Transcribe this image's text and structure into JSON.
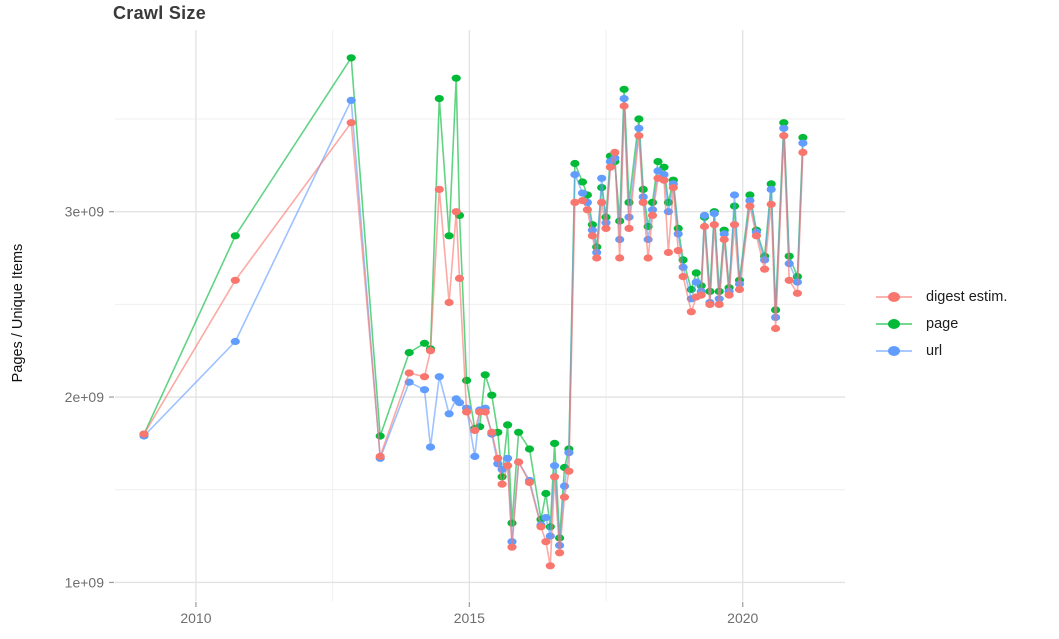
{
  "chart": {
    "title": "Crawl Size",
    "y_axis_title": "Pages / Unique Items",
    "legend": {
      "items": [
        {
          "label": "digest estim.",
          "color": "#F8766D"
        },
        {
          "label": "page",
          "color": "#00BA38"
        },
        {
          "label": "url",
          "color": "#619CFF"
        }
      ]
    }
  },
  "chart_data": {
    "type": "line",
    "title": "Crawl Size",
    "xlabel": "",
    "ylabel": "Pages / Unique Items",
    "unit": "items, value x 1e9",
    "grid": true,
    "legend_position": "right",
    "xlim": [
      2008.52,
      2021.87
    ],
    "ylim": [
      0.9,
      3.98
    ],
    "x_major_ticks": [
      {
        "label": "2010",
        "value": 2010
      },
      {
        "label": "2015",
        "value": 2015
      },
      {
        "label": "2020",
        "value": 2020
      }
    ],
    "x_minor_gridlines": [
      2012.5,
      2017.5
    ],
    "y_major_ticks": [
      {
        "label": "1e+09",
        "value": 1
      },
      {
        "label": "2e+09",
        "value": 2
      },
      {
        "label": "3e+09",
        "value": 3
      }
    ],
    "y_minor_gridlines": [
      1.5,
      2.5,
      3.5
    ],
    "x": [
      2009.05,
      2010.72,
      2012.84,
      2013.37,
      2013.9,
      2014.18,
      2014.29,
      2014.45,
      2014.63,
      2014.76,
      2014.82,
      2014.95,
      2015.1,
      2015.19,
      2015.29,
      2015.41,
      2015.52,
      2015.6,
      2015.7,
      2015.78,
      2015.9,
      2016.1,
      2016.31,
      2016.4,
      2016.48,
      2016.56,
      2016.65,
      2016.74,
      2016.82,
      2016.93,
      2017.07,
      2017.16,
      2017.25,
      2017.33,
      2017.42,
      2017.5,
      2017.58,
      2017.66,
      2017.75,
      2017.83,
      2017.92,
      2018.1,
      2018.18,
      2018.27,
      2018.35,
      2018.45,
      2018.56,
      2018.64,
      2018.73,
      2018.82,
      2018.91,
      2019.06,
      2019.15,
      2019.24,
      2019.3,
      2019.4,
      2019.48,
      2019.57,
      2019.66,
      2019.75,
      2019.85,
      2019.94,
      2020.13,
      2020.25,
      2020.4,
      2020.52,
      2020.6,
      2020.75,
      2020.85,
      2021.0,
      2021.1
    ],
    "series": [
      {
        "name": "digest estim.",
        "color": "#F8766D",
        "values": [
          1.8,
          2.63,
          3.48,
          1.68,
          2.13,
          2.11,
          2.25,
          3.12,
          2.51,
          3.0,
          2.64,
          1.92,
          1.82,
          1.92,
          1.92,
          1.81,
          1.67,
          1.53,
          1.63,
          1.19,
          1.65,
          1.54,
          1.3,
          1.22,
          1.09,
          1.57,
          1.16,
          1.46,
          1.6,
          3.05,
          3.06,
          3.01,
          2.87,
          2.75,
          3.05,
          2.91,
          3.24,
          3.32,
          2.75,
          3.57,
          2.91,
          3.41,
          3.05,
          2.75,
          2.98,
          3.18,
          3.17,
          2.78,
          3.13,
          2.79,
          2.65,
          2.46,
          2.54,
          2.55,
          2.92,
          2.5,
          2.93,
          2.5,
          2.85,
          2.55,
          2.93,
          2.58,
          3.03,
          2.87,
          2.69,
          3.04,
          2.37,
          3.41,
          2.63,
          2.56,
          3.32
        ]
      },
      {
        "name": "page",
        "color": "#00BA38",
        "values": [
          1.8,
          2.87,
          3.83,
          1.79,
          2.24,
          2.29,
          2.26,
          3.61,
          2.87,
          3.72,
          2.98,
          2.09,
          1.83,
          1.84,
          2.12,
          2.01,
          1.81,
          1.57,
          1.85,
          1.32,
          1.81,
          1.72,
          1.34,
          1.48,
          1.3,
          1.75,
          1.24,
          1.62,
          1.72,
          3.26,
          3.16,
          3.09,
          2.93,
          2.81,
          3.13,
          2.97,
          3.3,
          3.27,
          2.95,
          3.66,
          3.05,
          3.5,
          3.12,
          2.92,
          3.05,
          3.27,
          3.24,
          3.05,
          3.17,
          2.91,
          2.74,
          2.58,
          2.67,
          2.6,
          2.97,
          2.57,
          3.0,
          2.57,
          2.9,
          2.59,
          3.03,
          2.63,
          3.09,
          2.9,
          2.76,
          3.15,
          2.47,
          3.48,
          2.76,
          2.65,
          3.4
        ]
      },
      {
        "name": "url",
        "color": "#619CFF",
        "values": [
          1.79,
          2.3,
          3.6,
          1.67,
          2.08,
          2.04,
          1.73,
          2.11,
          1.91,
          1.99,
          1.97,
          1.94,
          1.68,
          1.93,
          1.94,
          1.8,
          1.64,
          1.61,
          1.67,
          1.22,
          1.65,
          1.55,
          1.31,
          1.35,
          1.25,
          1.63,
          1.2,
          1.52,
          1.7,
          3.2,
          3.1,
          3.05,
          2.9,
          2.78,
          3.18,
          2.94,
          3.27,
          3.29,
          2.85,
          3.61,
          2.97,
          3.45,
          3.08,
          2.85,
          3.01,
          3.22,
          3.2,
          3.0,
          3.15,
          2.88,
          2.7,
          2.53,
          2.62,
          2.57,
          2.98,
          2.51,
          2.99,
          2.53,
          2.88,
          2.57,
          3.09,
          2.61,
          3.06,
          2.89,
          2.74,
          3.12,
          2.43,
          3.45,
          2.72,
          2.62,
          3.37
        ]
      }
    ]
  }
}
